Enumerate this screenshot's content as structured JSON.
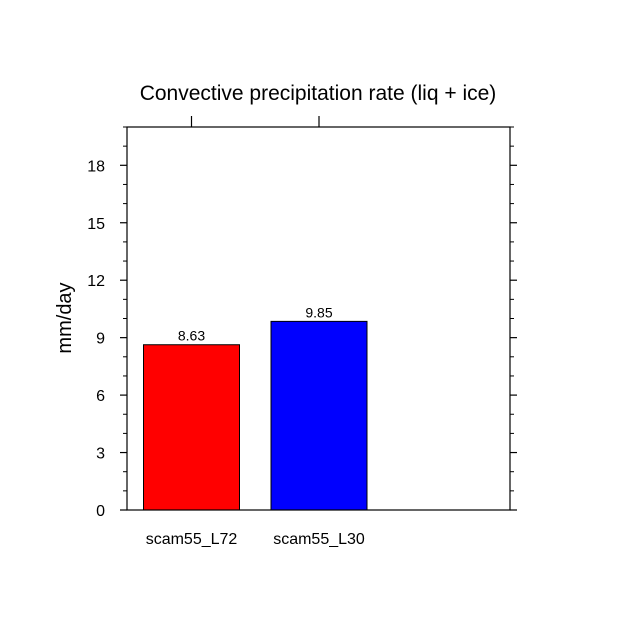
{
  "chart_data": {
    "type": "bar",
    "title": "Convective precipitation rate (liq + ice)",
    "xlabel": "",
    "ylabel": "mm/day",
    "categories": [
      "scam55_L72",
      "scam55_L30"
    ],
    "values": [
      8.63,
      9.85
    ],
    "value_labels": [
      "8.63",
      "9.85"
    ],
    "colors": [
      "#ff0000",
      "#0000ff"
    ],
    "ylim": [
      0,
      20
    ],
    "yticks": [
      0,
      3,
      6,
      9,
      12,
      15,
      18
    ],
    "ytick_labels": [
      "0",
      "3",
      "6",
      "9",
      "12",
      "15",
      "18"
    ],
    "grid": false,
    "legend": "none"
  }
}
